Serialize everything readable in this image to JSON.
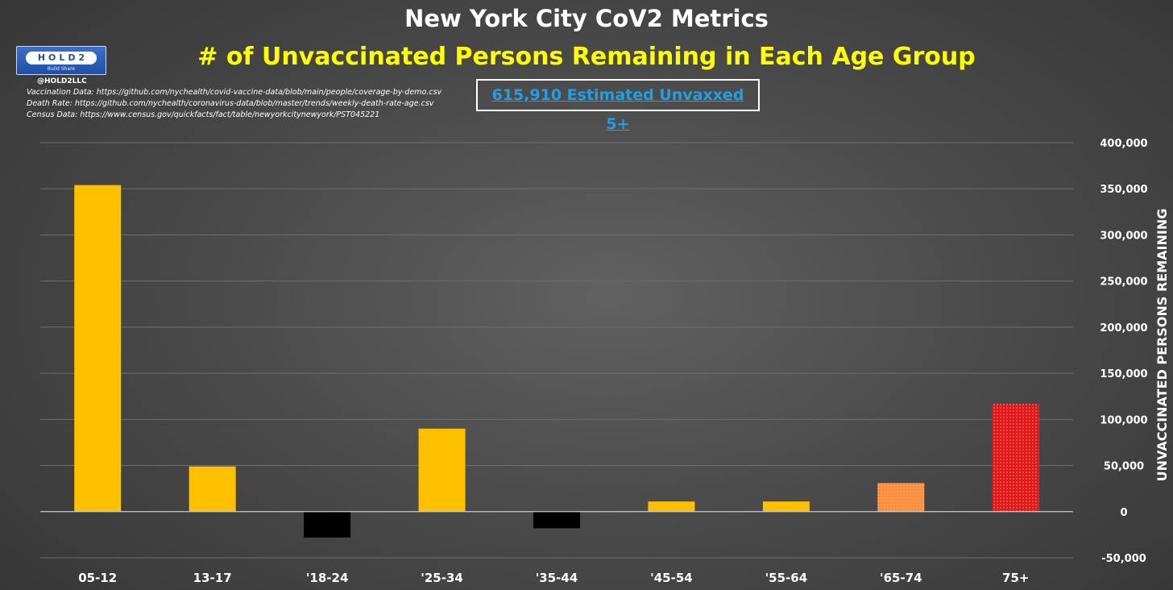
{
  "header": {
    "title": "New York City CoV2 Metrics",
    "subtitle": "# of Unvaccinated Persons Remaining in Each Age Group",
    "logo_text": "HOLD2",
    "logo_tagline": "Build Share",
    "handle": "@HOLD2LLC",
    "sources": [
      "Vaccination Data: https://github.com/nychealth/covid-vaccine-data/blob/main/people/coverage-by-demo.csv",
      "Death Rate: https://github.com/nychealth/coronavirus-data/blob/master/trends/weekly-death-rate-age.csv",
      "Census Data: https://www.census.gov/quickfacts/fact/table/newyorkcitynewyork/PST045221"
    ],
    "total_label": "615,910 Estimated Unvaxxed 5+"
  },
  "colors": {
    "bar_default": "#ffc000",
    "bar_negative": "#000000",
    "bar_65_74": "#ff8c3a",
    "bar_75_plus": "#e01818",
    "gridline": "#6e6e6e",
    "zero_line": "#c8c8c8"
  },
  "chart_data": {
    "type": "bar",
    "categories": [
      "05-12",
      "13-17",
      "'18-24",
      "'25-34",
      "'35-44",
      "'45-54",
      "'55-64",
      "'65-74",
      "75+"
    ],
    "values": [
      354000,
      49000,
      -28000,
      90000,
      -18000,
      11000,
      11000,
      31000,
      117000
    ],
    "ylabel": "UNVACCINATED PERSONS REMAINING",
    "ylim": [
      -50000,
      400000
    ],
    "yticks": [
      400000,
      350000,
      300000,
      250000,
      200000,
      150000,
      100000,
      50000,
      0,
      -50000
    ],
    "ytick_labels": [
      "400,000",
      "350,000",
      "300,000",
      "250,000",
      "200,000",
      "150,000",
      "100,000",
      "50,000",
      "0",
      "-50,000"
    ],
    "yaxis_position": "right",
    "grid": true,
    "legend": "none"
  }
}
